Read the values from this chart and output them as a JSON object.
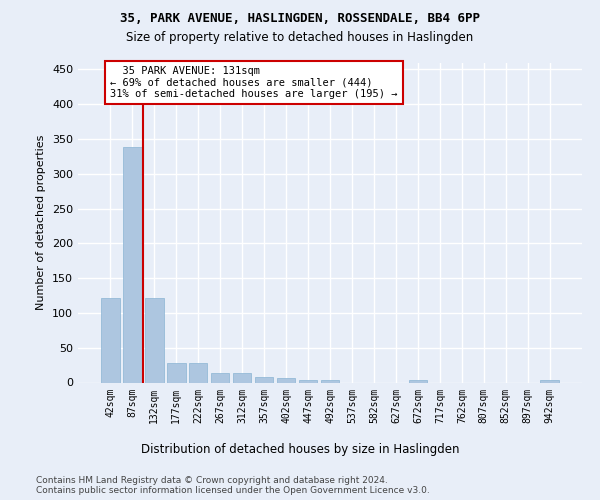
{
  "title1": "35, PARK AVENUE, HASLINGDEN, ROSSENDALE, BB4 6PP",
  "title2": "Size of property relative to detached houses in Haslingden",
  "xlabel": "Distribution of detached houses by size in Haslingden",
  "ylabel": "Number of detached properties",
  "categories": [
    "42sqm",
    "87sqm",
    "132sqm",
    "177sqm",
    "222sqm",
    "267sqm",
    "312sqm",
    "357sqm",
    "402sqm",
    "447sqm",
    "492sqm",
    "537sqm",
    "582sqm",
    "627sqm",
    "672sqm",
    "717sqm",
    "762sqm",
    "807sqm",
    "852sqm",
    "897sqm",
    "942sqm"
  ],
  "values": [
    122,
    339,
    122,
    28,
    28,
    14,
    14,
    8,
    6,
    4,
    3,
    0,
    0,
    0,
    3,
    0,
    0,
    0,
    0,
    0,
    4
  ],
  "bar_color": "#adc6e0",
  "bar_edge_color": "#8ab4d4",
  "background_color": "#e8eef8",
  "grid_color": "#ffffff",
  "vline_x": 1.5,
  "vline_color": "#cc0000",
  "annotation_line1": "  35 PARK AVENUE: 131sqm",
  "annotation_line2": "← 69% of detached houses are smaller (444)",
  "annotation_line3": "31% of semi-detached houses are larger (195) →",
  "annotation_box_color": "#ffffff",
  "annotation_box_edge_color": "#cc0000",
  "footer": "Contains HM Land Registry data © Crown copyright and database right 2024.\nContains public sector information licensed under the Open Government Licence v3.0.",
  "ylim": [
    0,
    460
  ],
  "yticks": [
    0,
    50,
    100,
    150,
    200,
    250,
    300,
    350,
    400,
    450
  ]
}
